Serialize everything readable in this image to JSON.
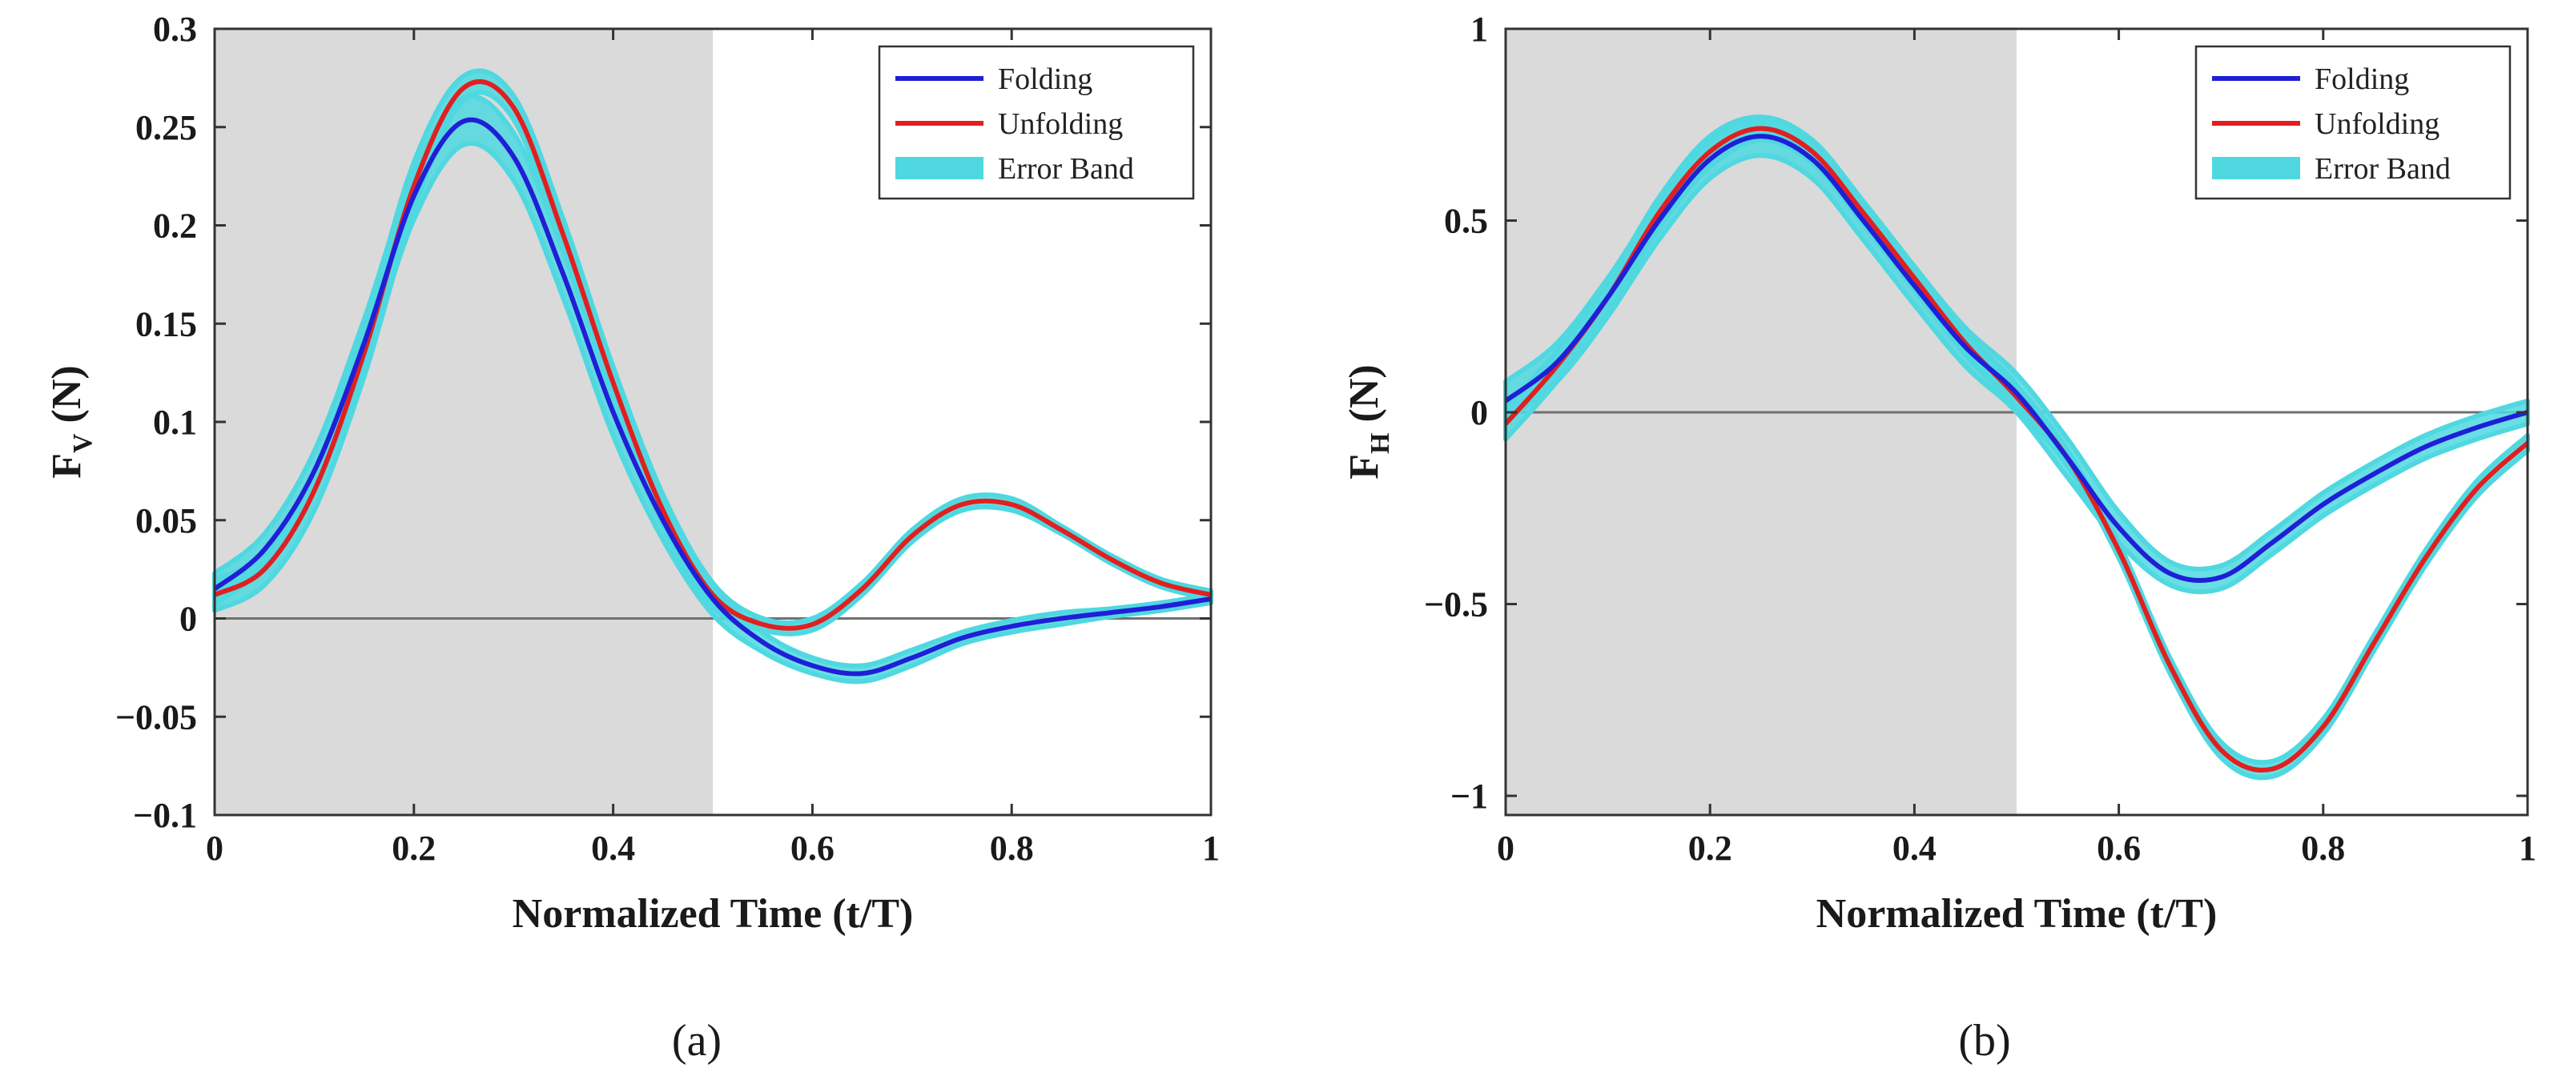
{
  "figure": {
    "captions": [
      "(a)",
      "(b)"
    ]
  },
  "colors": {
    "folding": "#1f1fd6",
    "unfolding": "#e02020",
    "band": "#4fd8e0",
    "shade": "#dadada",
    "zero_line": "#707070"
  },
  "chart_data": [
    {
      "type": "line",
      "title": "",
      "caption": "(a)",
      "xlabel": "Normalized Time (t/T)",
      "ylabel_main": "F",
      "ylabel_sub": "V",
      "ylabel_unit": " (N)",
      "xlim": [
        0,
        1
      ],
      "ylim": [
        -0.1,
        0.3
      ],
      "xticks": [
        0,
        0.2,
        0.4,
        0.6,
        0.8,
        1
      ],
      "xtick_labels": [
        "0",
        "0.2",
        "0.4",
        "0.6",
        "0.8",
        "1"
      ],
      "yticks": [
        0.3,
        0.25,
        0.2,
        0.15,
        0.1,
        0.05,
        0,
        -0.05,
        -0.1
      ],
      "ytick_labels": [
        "0.3",
        "0.25",
        "0.2",
        "0.15",
        "0.1",
        "0.05",
        "0",
        "−0.05",
        "−0.1"
      ],
      "shaded_region": [
        0,
        0.5
      ],
      "zero_line": 0,
      "legend": [
        "Folding",
        "Unfolding",
        "Error Band"
      ],
      "legend_position": "top-right",
      "series": [
        {
          "name": "Folding",
          "x": [
            0,
            0.05,
            0.1,
            0.15,
            0.2,
            0.25,
            0.3,
            0.35,
            0.4,
            0.45,
            0.5,
            0.55,
            0.6,
            0.65,
            0.7,
            0.75,
            0.8,
            0.85,
            0.9,
            0.95,
            1
          ],
          "y": [
            0.015,
            0.035,
            0.075,
            0.14,
            0.215,
            0.253,
            0.235,
            0.175,
            0.105,
            0.05,
            0.01,
            -0.012,
            -0.024,
            -0.028,
            -0.02,
            -0.01,
            -0.004,
            0.0,
            0.003,
            0.006,
            0.01
          ],
          "band": [
            0.008,
            0.008,
            0.01,
            0.012,
            0.012,
            0.012,
            0.012,
            0.012,
            0.012,
            0.01,
            0.008,
            0.005,
            0.004,
            0.004,
            0.004,
            0.003,
            0.003,
            0.003,
            0.002,
            0.002,
            0.002
          ]
        },
        {
          "name": "Unfolding",
          "x": [
            0,
            0.05,
            0.1,
            0.15,
            0.2,
            0.25,
            0.3,
            0.35,
            0.4,
            0.45,
            0.5,
            0.55,
            0.6,
            0.65,
            0.7,
            0.75,
            0.8,
            0.85,
            0.9,
            0.95,
            1
          ],
          "y": [
            0.012,
            0.025,
            0.065,
            0.135,
            0.22,
            0.27,
            0.26,
            0.195,
            0.12,
            0.055,
            0.012,
            -0.003,
            -0.003,
            0.015,
            0.042,
            0.058,
            0.058,
            0.045,
            0.03,
            0.018,
            0.012
          ],
          "band": [
            0.008,
            0.008,
            0.01,
            0.012,
            0.012,
            0.006,
            0.006,
            0.008,
            0.008,
            0.008,
            0.006,
            0.003,
            0.003,
            0.003,
            0.003,
            0.003,
            0.003,
            0.002,
            0.002,
            0.002,
            0.002
          ]
        }
      ]
    },
    {
      "type": "line",
      "title": "",
      "caption": "(b)",
      "xlabel": "Normalized Time (t/T)",
      "ylabel_main": "F",
      "ylabel_sub": "H",
      "ylabel_unit": " (N)",
      "xlim": [
        0,
        1
      ],
      "ylim": [
        -1.05,
        1
      ],
      "xticks": [
        0,
        0.2,
        0.4,
        0.6,
        0.8,
        1
      ],
      "xtick_labels": [
        "0",
        "0.2",
        "0.4",
        "0.6",
        "0.8",
        "1"
      ],
      "yticks": [
        1,
        0.5,
        0,
        -0.5,
        -1
      ],
      "ytick_labels": [
        "1",
        "0.5",
        "0",
        "−0.5",
        "−1"
      ],
      "shaded_region": [
        0,
        0.5
      ],
      "zero_line": 0,
      "legend": [
        "Folding",
        "Unfolding",
        "Error Band"
      ],
      "legend_position": "top-right",
      "series": [
        {
          "name": "Folding",
          "x": [
            0,
            0.05,
            0.1,
            0.15,
            0.2,
            0.25,
            0.3,
            0.35,
            0.4,
            0.45,
            0.5,
            0.55,
            0.6,
            0.65,
            0.7,
            0.75,
            0.8,
            0.85,
            0.9,
            0.95,
            1
          ],
          "y": [
            0.03,
            0.13,
            0.3,
            0.5,
            0.66,
            0.72,
            0.66,
            0.5,
            0.33,
            0.17,
            0.05,
            -0.12,
            -0.3,
            -0.42,
            -0.43,
            -0.34,
            -0.24,
            -0.16,
            -0.09,
            -0.04,
            0.0
          ],
          "band": [
            0.05,
            0.05,
            0.05,
            0.05,
            0.05,
            0.05,
            0.05,
            0.05,
            0.05,
            0.05,
            0.05,
            0.05,
            0.04,
            0.03,
            0.03,
            0.03,
            0.03,
            0.03,
            0.03,
            0.03,
            0.03
          ]
        },
        {
          "name": "Unfolding",
          "x": [
            0,
            0.05,
            0.1,
            0.15,
            0.2,
            0.25,
            0.3,
            0.35,
            0.4,
            0.45,
            0.5,
            0.55,
            0.6,
            0.65,
            0.7,
            0.75,
            0.8,
            0.85,
            0.9,
            0.95,
            1
          ],
          "y": [
            -0.03,
            0.12,
            0.3,
            0.52,
            0.68,
            0.74,
            0.68,
            0.52,
            0.35,
            0.18,
            0.04,
            -0.12,
            -0.36,
            -0.66,
            -0.88,
            -0.93,
            -0.82,
            -0.6,
            -0.38,
            -0.2,
            -0.08
          ],
          "band": [
            0.04,
            0.04,
            0.04,
            0.04,
            0.04,
            0.03,
            0.03,
            0.03,
            0.03,
            0.03,
            0.03,
            0.02,
            0.02,
            0.02,
            0.02,
            0.02,
            0.02,
            0.02,
            0.02,
            0.02,
            0.02
          ]
        }
      ]
    }
  ]
}
